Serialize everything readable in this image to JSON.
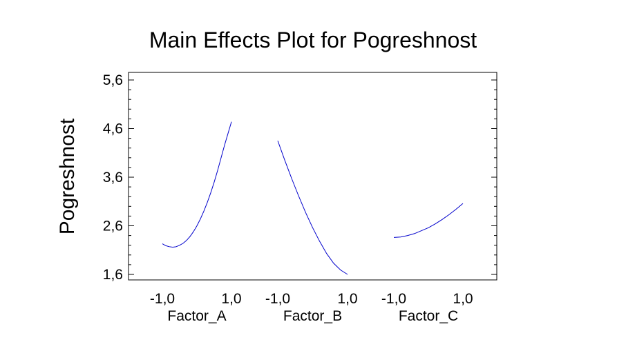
{
  "chart_data": {
    "type": "line",
    "title": "Main Effects Plot for Pogreshnost",
    "ylabel": "Pogreshnost",
    "ylim": [
      1.6,
      5.6
    ],
    "yticks": [
      "1,6",
      "2,6",
      "3,6",
      "4,6",
      "5,6"
    ],
    "ytick_values": [
      1.6,
      2.6,
      3.6,
      4.6,
      5.6
    ],
    "grid": false,
    "line_color": "#0000cc",
    "factors": [
      {
        "name": "Factor_A",
        "tick_labels": [
          "-1,0",
          "1,0"
        ],
        "x": [
          -1.0,
          -0.9,
          -0.8,
          -0.7,
          -0.6,
          -0.5,
          -0.4,
          -0.3,
          -0.2,
          -0.1,
          0.0,
          0.1,
          0.2,
          0.3,
          0.4,
          0.5,
          0.6,
          0.7,
          0.8,
          0.9,
          1.0
        ],
        "y": [
          2.23,
          2.19,
          2.17,
          2.16,
          2.17,
          2.2,
          2.24,
          2.3,
          2.38,
          2.48,
          2.6,
          2.74,
          2.9,
          3.08,
          3.28,
          3.5,
          3.74,
          4.0,
          4.26,
          4.5,
          4.74
        ]
      },
      {
        "name": "Factor_B",
        "tick_labels": [
          "-1,0",
          "1,0"
        ],
        "x": [
          -1.0,
          -0.8,
          -0.6,
          -0.4,
          -0.2,
          0.0,
          0.2,
          0.4,
          0.6,
          0.8,
          1.0
        ],
        "y": [
          4.35,
          3.95,
          3.57,
          3.21,
          2.87,
          2.56,
          2.28,
          2.03,
          1.83,
          1.69,
          1.6
        ]
      },
      {
        "name": "Factor_C",
        "tick_labels": [
          "-1,0",
          "1,0"
        ],
        "x": [
          -1.0,
          -0.8,
          -0.6,
          -0.4,
          -0.2,
          0.0,
          0.2,
          0.4,
          0.6,
          0.8,
          1.0
        ],
        "y": [
          2.36,
          2.37,
          2.4,
          2.44,
          2.5,
          2.56,
          2.64,
          2.73,
          2.83,
          2.94,
          3.06
        ]
      }
    ]
  }
}
